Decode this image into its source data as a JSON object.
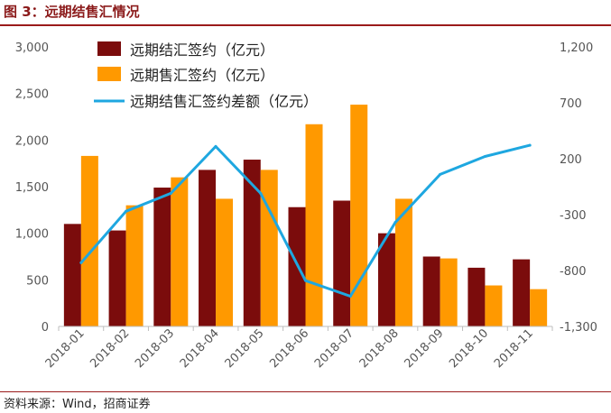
{
  "figure": {
    "title": "图 3：远期结售汇情况",
    "source": "资料来源：Wind，招商证券"
  },
  "chart_data": {
    "type": "bar",
    "categories": [
      "2018-01",
      "2018-02",
      "2018-03",
      "2018-04",
      "2018-05",
      "2018-06",
      "2018-07",
      "2018-08",
      "2018-09",
      "2018-10",
      "2018-11"
    ],
    "series": [
      {
        "name": "远期结汇签约（亿元）",
        "type": "bar",
        "axis": "left",
        "color": "#7b0c0c",
        "values": [
          1100,
          1030,
          1490,
          1680,
          1790,
          1280,
          1350,
          1000,
          750,
          630,
          720
        ]
      },
      {
        "name": "远期售汇签约（亿元）",
        "type": "bar",
        "axis": "left",
        "color": "#ff9900",
        "values": [
          1830,
          1300,
          1600,
          1370,
          1680,
          2170,
          2380,
          1370,
          730,
          440,
          400
        ]
      },
      {
        "name": "远期结售汇签约差额（亿元）",
        "type": "line",
        "axis": "right",
        "color": "#1ea7e0",
        "values": [
          -730,
          -270,
          -110,
          310,
          -110,
          -890,
          -1030,
          -370,
          60,
          220,
          320
        ]
      }
    ],
    "y_left": {
      "min": 0,
      "max": 3000,
      "ticks": [
        0,
        500,
        1000,
        1500,
        2000,
        2500,
        3000
      ],
      "tick_labels": [
        "0",
        "500",
        "1,000",
        "1,500",
        "2,000",
        "2,500",
        "3,000"
      ]
    },
    "y_right": {
      "min": -1300,
      "max": 1200,
      "ticks": [
        -1300,
        -800,
        -300,
        200,
        700,
        1200
      ],
      "tick_labels": [
        "-1,300",
        "-800",
        "-300",
        "200",
        "700",
        "1,200"
      ]
    },
    "legend_position": "top-left",
    "grid": false
  }
}
